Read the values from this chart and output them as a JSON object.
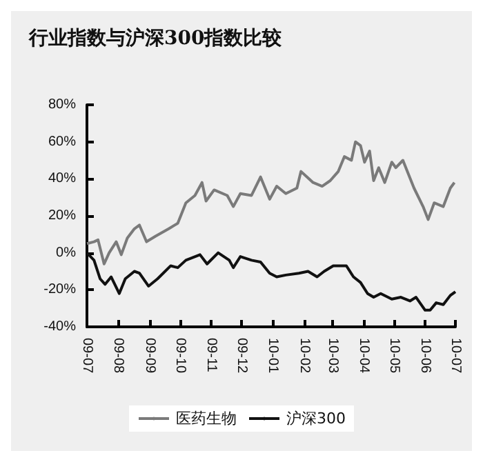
{
  "chart_data": {
    "type": "line",
    "title": "行业指数与沪深300指数比较",
    "xlim": [
      "2009-07-01",
      "2010-07-01"
    ],
    "xticks": [
      {
        "value": "2009-07-01",
        "label": "09-07"
      },
      {
        "value": "2009-08-01",
        "label": "09-08"
      },
      {
        "value": "2009-09-01",
        "label": "09-09"
      },
      {
        "value": "2009-10-01",
        "label": "09-10"
      },
      {
        "value": "2009-11-01",
        "label": "09-11"
      },
      {
        "value": "2009-12-01",
        "label": "09-12"
      },
      {
        "value": "2010-01-01",
        "label": "10-01"
      },
      {
        "value": "2010-02-01",
        "label": "10-02"
      },
      {
        "value": "2010-03-01",
        "label": "10-03"
      },
      {
        "value": "2010-04-01",
        "label": "10-04"
      },
      {
        "value": "2010-05-01",
        "label": "10-05"
      },
      {
        "value": "2010-06-01",
        "label": "10-06"
      },
      {
        "value": "2010-07-01",
        "label": "10-07"
      }
    ],
    "ylim": [
      -40,
      80
    ],
    "yticks": [
      {
        "value": -40,
        "label": "-40%"
      },
      {
        "value": -20,
        "label": "-20%"
      },
      {
        "value": 0,
        "label": "0%"
      },
      {
        "value": 20,
        "label": "20%"
      },
      {
        "value": 40,
        "label": "40%"
      },
      {
        "value": 60,
        "label": "60%"
      },
      {
        "value": 80,
        "label": "80%"
      }
    ],
    "grid": false,
    "legend": "bottom",
    "marker": "none",
    "line_style": "solid",
    "series": [
      {
        "name": "医药生物",
        "color": "#7a7a7a",
        "x": [
          "2009-07-01",
          "2009-07-08",
          "2009-07-12",
          "2009-07-18",
          "2009-07-23",
          "2009-07-30",
          "2009-08-04",
          "2009-08-10",
          "2009-08-17",
          "2009-08-22",
          "2009-08-29",
          "2009-09-07",
          "2009-09-20",
          "2009-09-29",
          "2009-10-07",
          "2009-10-16",
          "2009-10-23",
          "2009-10-27",
          "2009-11-04",
          "2009-11-17",
          "2009-11-23",
          "2009-11-30",
          "2009-12-11",
          "2009-12-20",
          "2009-12-29",
          "2010-01-05",
          "2010-01-14",
          "2010-01-25",
          "2010-01-29",
          "2010-02-10",
          "2010-02-19",
          "2010-02-27",
          "2010-03-07",
          "2010-03-13",
          "2010-03-20",
          "2010-03-24",
          "2010-03-29",
          "2010-04-02",
          "2010-04-07",
          "2010-04-11",
          "2010-04-16",
          "2010-04-22",
          "2010-04-29",
          "2010-05-03",
          "2010-05-10",
          "2010-05-21",
          "2010-05-30",
          "2010-06-04",
          "2010-06-10",
          "2010-06-19",
          "2010-06-26",
          "2010-06-30"
        ],
        "values": [
          5,
          6,
          7,
          -6,
          0,
          6,
          -1,
          8,
          13,
          15,
          6,
          9,
          13,
          16,
          27,
          31,
          38,
          28,
          34,
          31,
          25,
          32,
          31,
          41,
          29,
          36,
          32,
          35,
          44,
          38,
          36,
          39,
          44,
          52,
          50,
          60,
          58,
          49,
          55,
          39,
          46,
          38,
          49,
          46,
          50,
          35,
          25,
          18,
          27,
          25,
          35,
          38
        ]
      },
      {
        "name": "沪深300",
        "color": "#111111",
        "x": [
          "2009-07-01",
          "2009-07-08",
          "2009-07-14",
          "2009-07-19",
          "2009-07-25",
          "2009-08-02",
          "2009-08-08",
          "2009-08-17",
          "2009-08-22",
          "2009-08-31",
          "2009-09-09",
          "2009-09-22",
          "2009-09-29",
          "2009-10-07",
          "2009-10-21",
          "2009-10-28",
          "2009-11-08",
          "2009-11-19",
          "2009-11-23",
          "2009-11-30",
          "2009-12-11",
          "2009-12-20",
          "2009-12-29",
          "2010-01-05",
          "2010-01-14",
          "2010-01-27",
          "2010-02-05",
          "2010-02-14",
          "2010-02-21",
          "2010-03-02",
          "2010-03-15",
          "2010-03-22",
          "2010-03-29",
          "2010-04-05",
          "2010-04-11",
          "2010-04-18",
          "2010-04-29",
          "2010-05-08",
          "2010-05-17",
          "2010-05-23",
          "2010-06-01",
          "2010-06-06",
          "2010-06-12",
          "2010-06-19",
          "2010-06-26",
          "2010-07-01"
        ],
        "values": [
          0,
          -4,
          -14,
          -17,
          -13,
          -22,
          -14,
          -10,
          -11,
          -18,
          -14,
          -7,
          -8,
          -4,
          -1,
          -6,
          0,
          -4,
          -8,
          -2,
          -4,
          -5,
          -11,
          -13,
          -12,
          -11,
          -10,
          -13,
          -10,
          -7,
          -7,
          -13,
          -16,
          -22,
          -24,
          -22,
          -25,
          -24,
          -26,
          -24,
          -31,
          -31,
          -27,
          -28,
          -23,
          -21
        ]
      }
    ]
  }
}
